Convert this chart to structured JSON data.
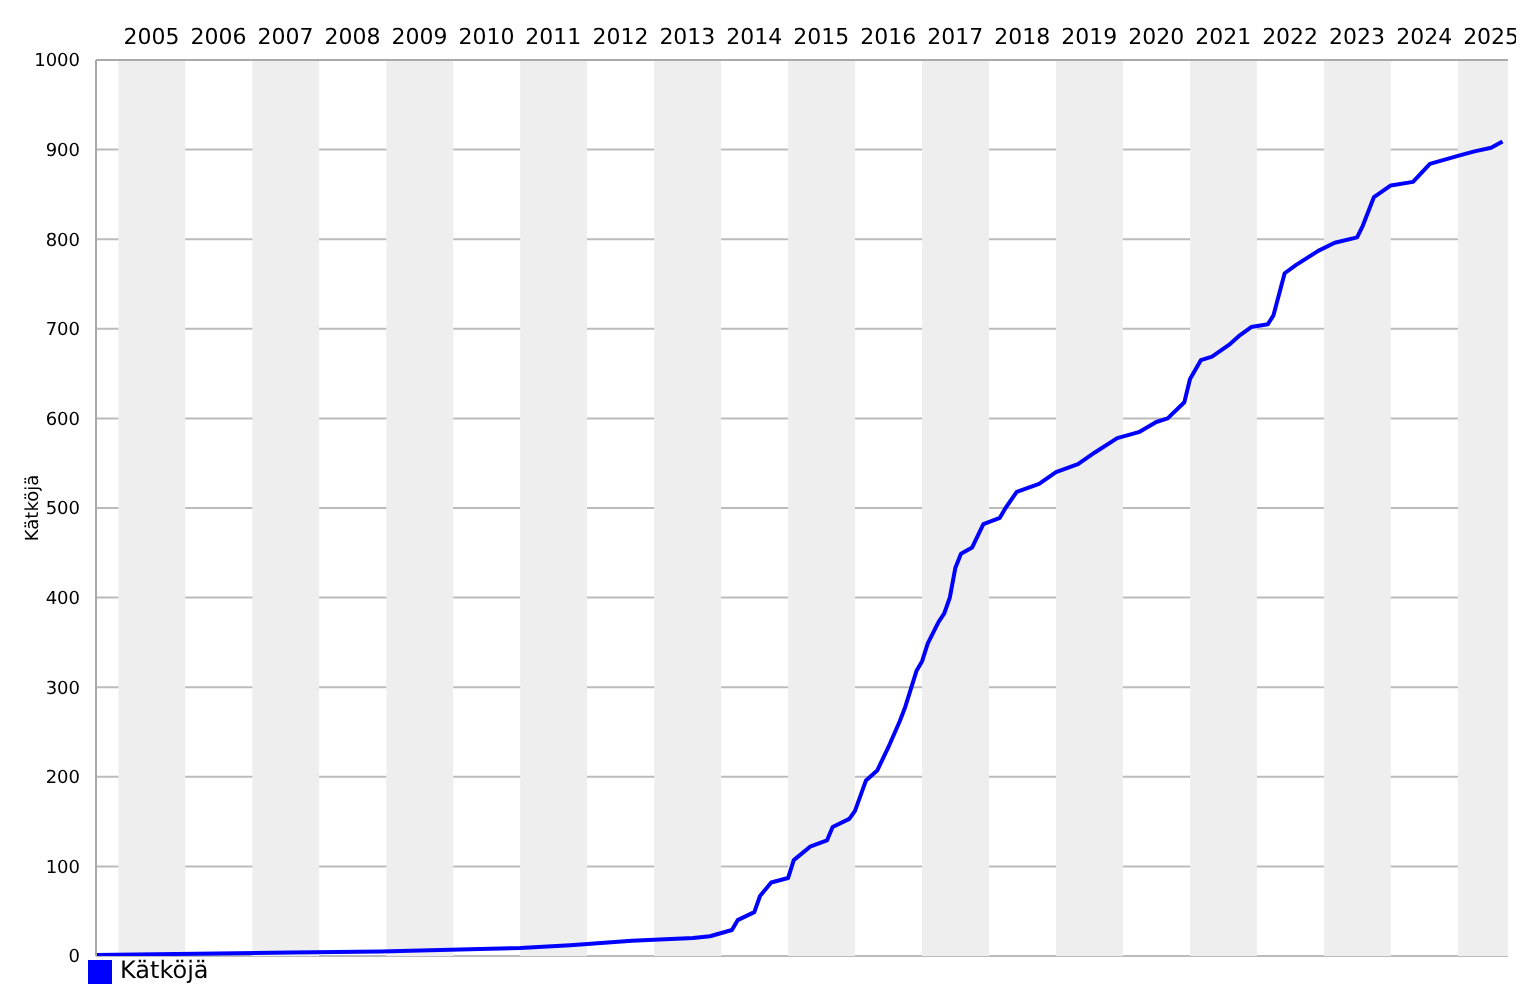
{
  "chart_data": {
    "type": "line",
    "ylabel": "Kätköjä",
    "x": [
      "2004-09",
      "2007-08",
      "2008-12",
      "2011-01",
      "2011-10",
      "2012-09",
      "2013-08",
      "2013-11",
      "2014-03",
      "2014-04",
      "2014-07",
      "2014-08",
      "2014-10",
      "2015-01",
      "2015-02",
      "2015-05",
      "2015-08",
      "2015-09",
      "2015-12",
      "2016-01",
      "2016-03",
      "2016-05",
      "2016-07",
      "2016-09",
      "2016-10",
      "2016-12",
      "2017-01",
      "2017-02",
      "2017-04",
      "2017-05",
      "2017-06",
      "2017-07",
      "2017-08",
      "2017-10",
      "2017-12",
      "2018-03",
      "2018-04",
      "2018-06",
      "2018-10",
      "2019-01",
      "2019-05",
      "2019-08",
      "2019-12",
      "2020-04",
      "2020-07",
      "2020-09",
      "2020-12",
      "2021-01",
      "2021-03",
      "2021-05",
      "2021-08",
      "2021-10",
      "2021-12",
      "2022-03",
      "2022-04",
      "2022-06",
      "2022-08",
      "2022-12",
      "2023-03",
      "2023-07",
      "2023-08",
      "2023-10",
      "2024-01",
      "2024-05",
      "2024-08",
      "2025-01",
      "2025-04",
      "2025-07",
      "2025-09"
    ],
    "series": [
      {
        "name": "Kätköjä",
        "color": "#0000ff",
        "values": [
          1,
          4,
          5,
          9,
          12,
          17,
          20,
          22,
          29,
          40,
          49,
          67,
          82,
          87,
          107,
          122,
          129,
          144,
          153,
          162,
          196,
          207,
          233,
          262,
          278,
          318,
          329,
          349,
          373,
          382,
          400,
          433,
          449,
          456,
          482,
          489,
          500,
          518,
          527,
          540,
          549,
          562,
          578,
          585,
          596,
          600,
          618,
          644,
          665,
          669,
          682,
          693,
          702,
          705,
          715,
          762,
          771,
          787,
          796,
          802,
          815,
          847,
          860,
          864,
          884,
          893,
          898,
          902,
          909
        ]
      }
    ],
    "xlim": [
      "2004-09",
      "2025-10"
    ],
    "xticks": [
      {
        "value": "2005-07",
        "label": "2005"
      },
      {
        "value": "2006-07",
        "label": "2006"
      },
      {
        "value": "2007-07",
        "label": "2007"
      },
      {
        "value": "2008-07",
        "label": "2008"
      },
      {
        "value": "2009-07",
        "label": "2009"
      },
      {
        "value": "2010-07",
        "label": "2010"
      },
      {
        "value": "2011-07",
        "label": "2011"
      },
      {
        "value": "2012-07",
        "label": "2012"
      },
      {
        "value": "2013-07",
        "label": "2013"
      },
      {
        "value": "2014-07",
        "label": "2014"
      },
      {
        "value": "2015-07",
        "label": "2015"
      },
      {
        "value": "2016-07",
        "label": "2016"
      },
      {
        "value": "2017-07",
        "label": "2017"
      },
      {
        "value": "2018-07",
        "label": "2018"
      },
      {
        "value": "2019-07",
        "label": "2019"
      },
      {
        "value": "2020-07",
        "label": "2020"
      },
      {
        "value": "2021-07",
        "label": "2021"
      },
      {
        "value": "2022-07",
        "label": "2022"
      },
      {
        "value": "2023-07",
        "label": "2023"
      },
      {
        "value": "2024-07",
        "label": "2024"
      },
      {
        "value": "2025-07",
        "label": "2025"
      }
    ],
    "ylim": [
      0,
      1000
    ],
    "yticks": [
      0,
      100,
      200,
      300,
      400,
      500,
      600,
      700,
      800,
      900,
      1000
    ],
    "bands": [
      {
        "axis": "x",
        "from": "2005-01",
        "to": "2006-01",
        "color": "#eeeeee"
      },
      {
        "axis": "x",
        "from": "2007-01",
        "to": "2008-01",
        "color": "#eeeeee"
      },
      {
        "axis": "x",
        "from": "2009-01",
        "to": "2010-01",
        "color": "#eeeeee"
      },
      {
        "axis": "x",
        "from": "2011-01",
        "to": "2012-01",
        "color": "#eeeeee"
      },
      {
        "axis": "x",
        "from": "2013-01",
        "to": "2014-01",
        "color": "#eeeeee"
      },
      {
        "axis": "x",
        "from": "2015-01",
        "to": "2016-01",
        "color": "#eeeeee"
      },
      {
        "axis": "x",
        "from": "2017-01",
        "to": "2018-01",
        "color": "#eeeeee"
      },
      {
        "axis": "x",
        "from": "2019-01",
        "to": "2020-01",
        "color": "#eeeeee"
      },
      {
        "axis": "x",
        "from": "2021-01",
        "to": "2022-01",
        "color": "#eeeeee"
      },
      {
        "axis": "x",
        "from": "2023-01",
        "to": "2024-01",
        "color": "#eeeeee"
      },
      {
        "axis": "x",
        "from": "2025-01",
        "to": "2025-10",
        "color": "#eeeeee"
      }
    ],
    "grid": "y",
    "legend": "bottom left",
    "marker": "none",
    "line_style": "solid"
  }
}
